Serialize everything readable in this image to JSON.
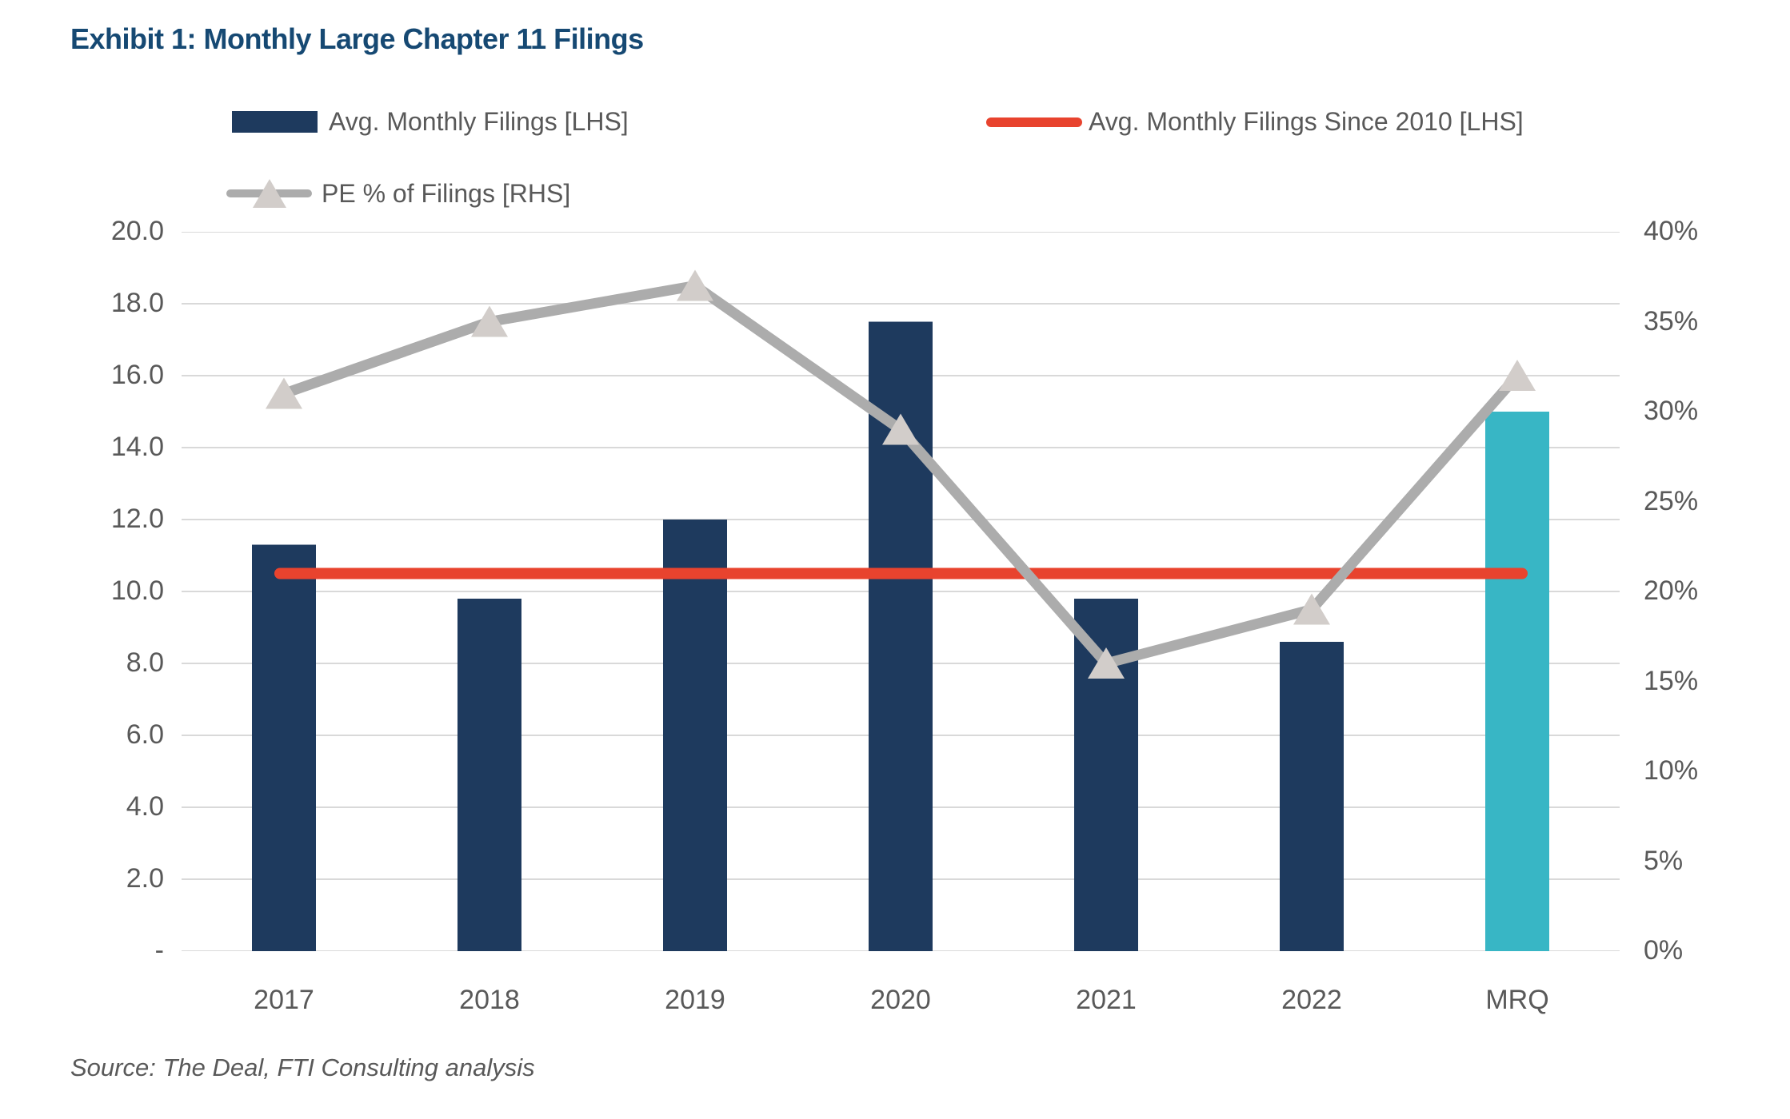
{
  "title": "Exhibit 1: Monthly Large Chapter 11 Filings",
  "source": "Source: The Deal, FTI Consulting analysis",
  "colors": {
    "title": "#164973",
    "text": "#595959",
    "bar": "#1E3A5E",
    "bar_highlight": "#38B6C5",
    "avg_line": "#E8432E",
    "pe_line": "#ACACAC",
    "pe_marker": "#D2CDCA",
    "grid": "#D9D9D9"
  },
  "legend": {
    "bars_label": "Avg. Monthly Filings [LHS]",
    "avg_line_label": "Avg. Monthly Filings Since 2010 [LHS]",
    "pe_line_label": "PE % of Filings [RHS]"
  },
  "chart_data": {
    "type": "bar+line dual-axis",
    "categories": [
      "2017",
      "2018",
      "2019",
      "2020",
      "2021",
      "2022",
      "MRQ"
    ],
    "series": [
      {
        "name": "Avg. Monthly Filings [LHS]",
        "type": "bar",
        "axis": "left",
        "values": [
          11.3,
          9.8,
          12.0,
          17.5,
          9.8,
          8.6,
          15.0
        ],
        "highlight_last_category": true
      },
      {
        "name": "Avg. Monthly Filings Since 2010 [LHS]",
        "type": "line",
        "axis": "left",
        "constant_value": 10.5
      },
      {
        "name": "PE % of Filings [RHS]",
        "type": "line",
        "axis": "right",
        "marker": "triangle",
        "values": [
          31,
          35,
          37,
          29,
          16,
          19,
          32
        ]
      }
    ],
    "left_axis": {
      "min": 0,
      "max": 20,
      "step": 2,
      "tick_labels_top_to_bottom": [
        "20.0",
        "18.0",
        "16.0",
        "14.0",
        "12.0",
        "10.0",
        "8.0",
        "6.0",
        "4.0",
        "2.0",
        "-"
      ]
    },
    "right_axis": {
      "min": 0,
      "max": 40,
      "step": 5,
      "tick_labels_top_to_bottom": [
        "40%",
        "35%",
        "30%",
        "25%",
        "20%",
        "15%",
        "10%",
        "5%",
        "0%"
      ]
    },
    "grid": "horizontal-only",
    "legend_position": "top"
  }
}
